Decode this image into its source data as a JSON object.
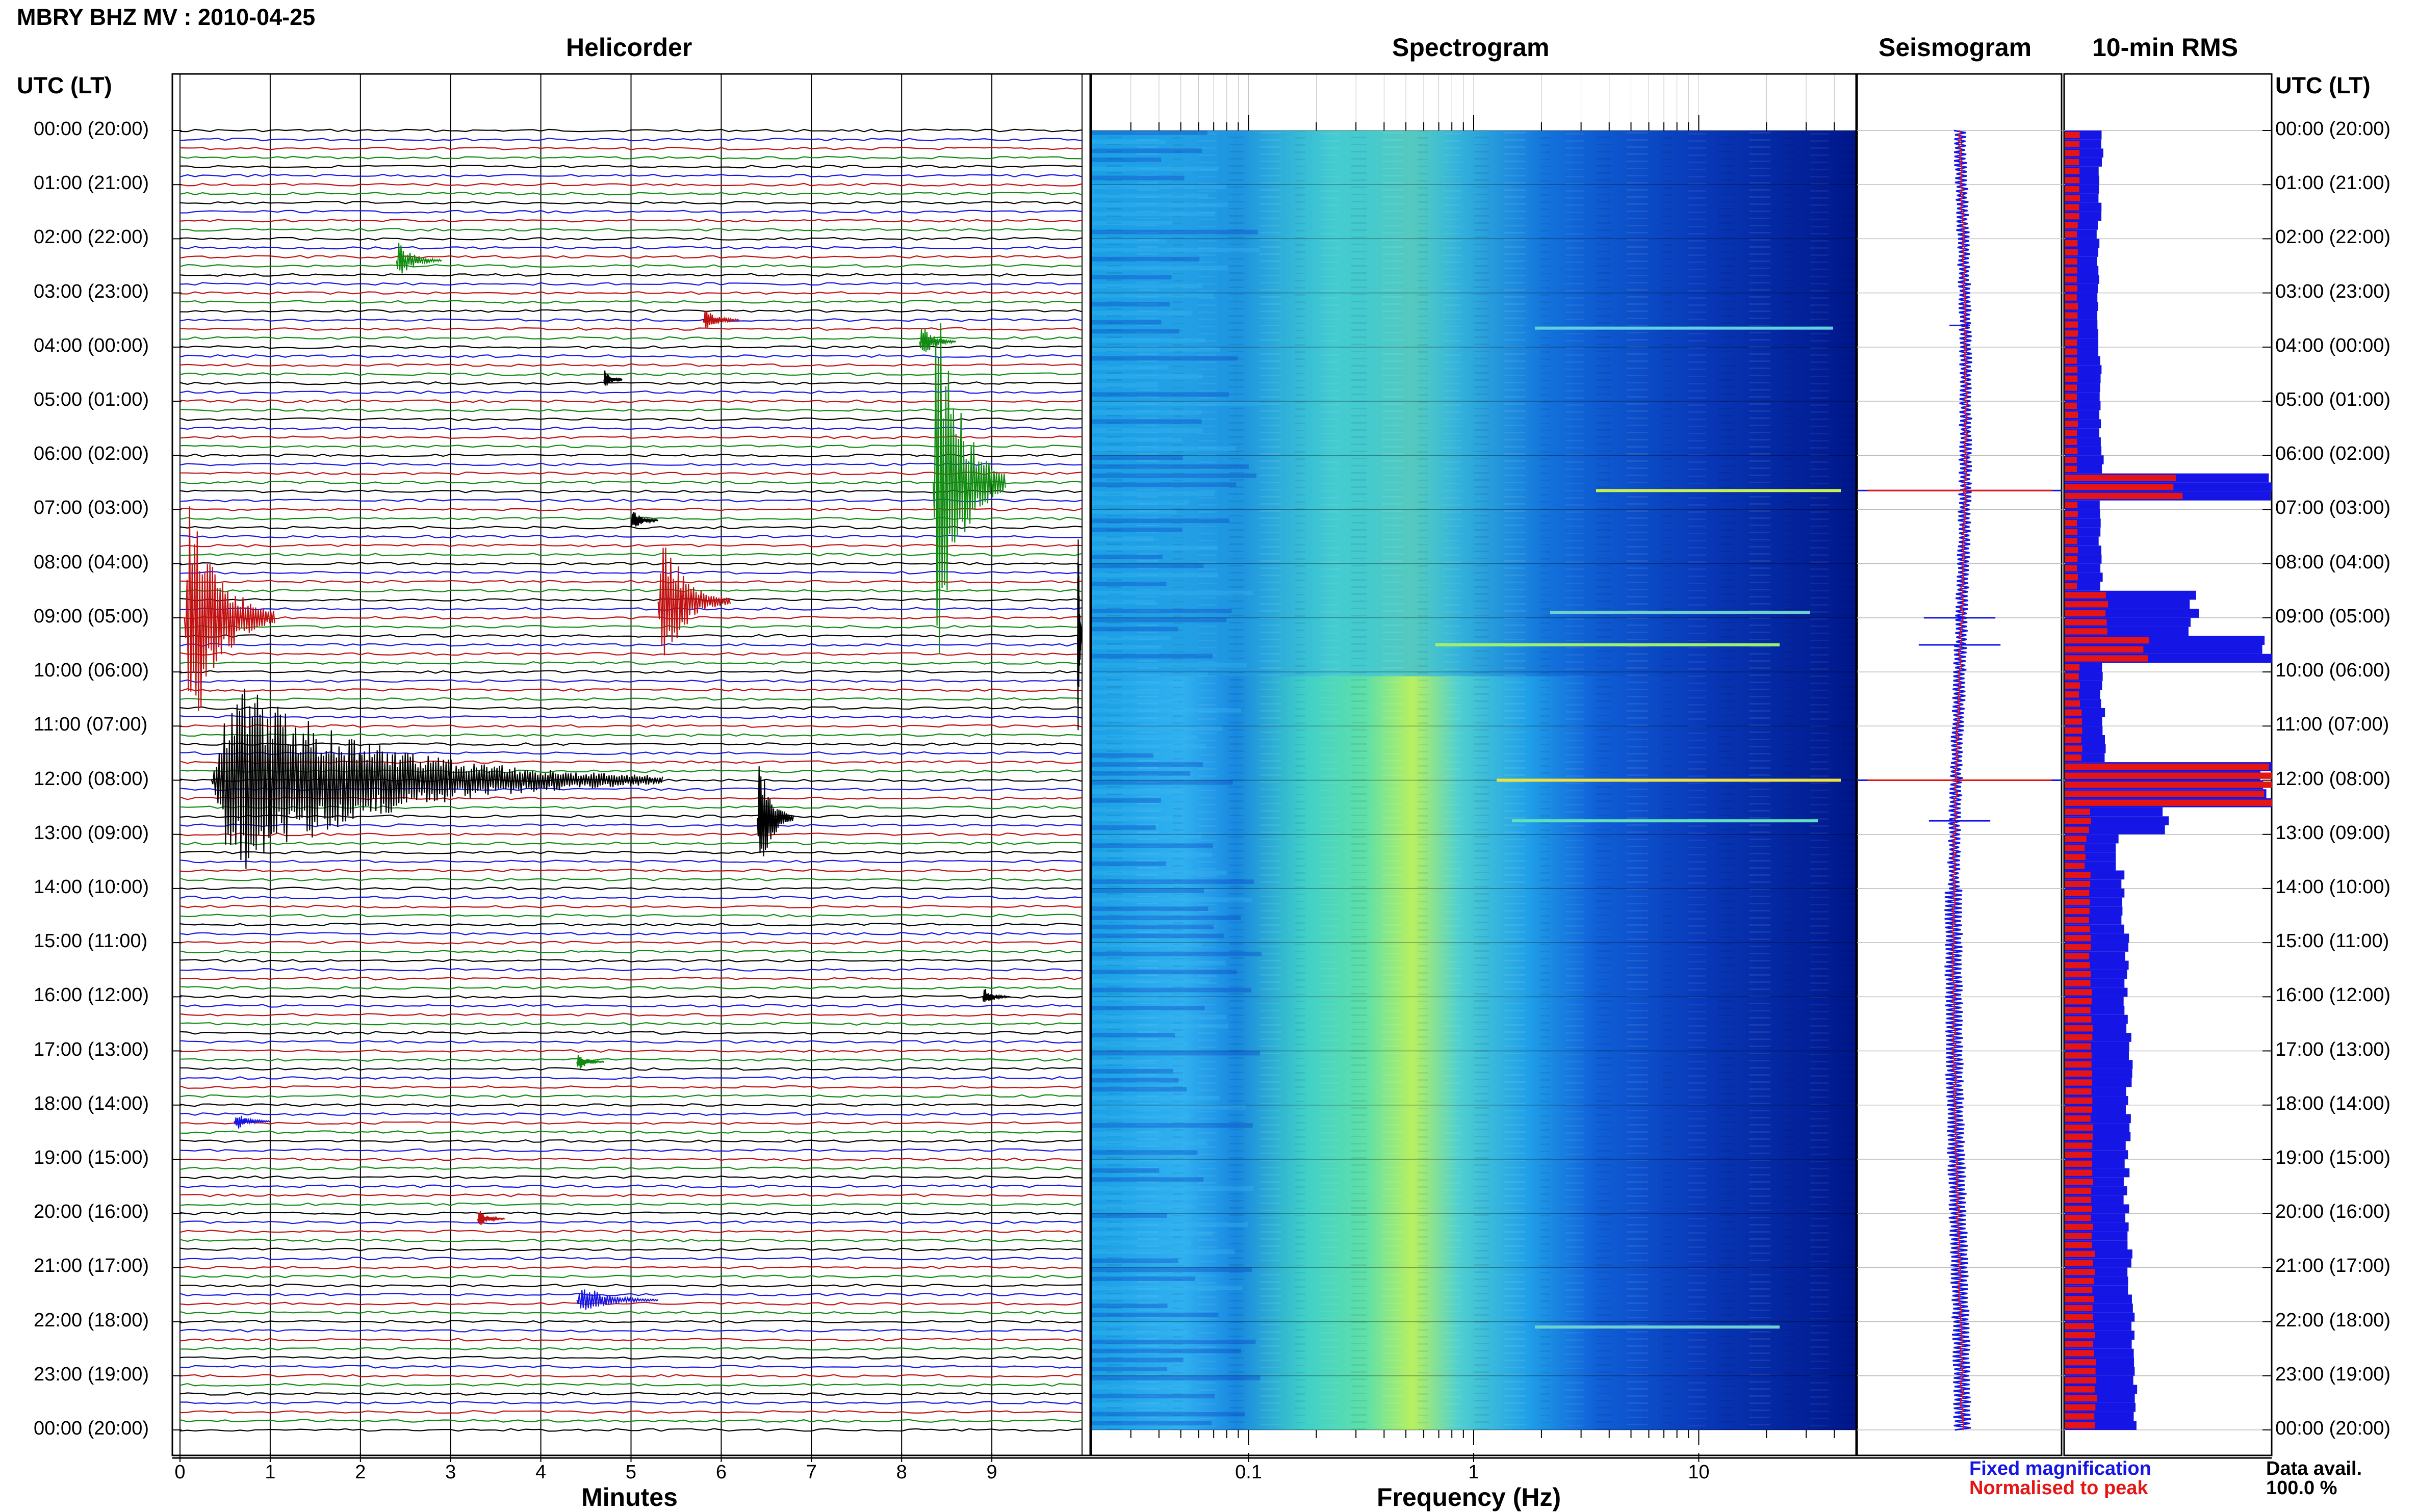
{
  "header": {
    "title": "MBRY BHZ MV : 2010-04-25",
    "utc_label_left": "UTC (LT)",
    "utc_label_right": "UTC (LT)"
  },
  "panels": {
    "helicorder": "Helicorder",
    "spectrogram": "Spectrogram",
    "seismogram": "Seismogram",
    "rms": "10-min RMS"
  },
  "axes": {
    "minutes_label": "Minutes",
    "frequency_label": "Frequency (Hz)",
    "minute_ticks": [
      "0",
      "1",
      "2",
      "3",
      "4",
      "5",
      "6",
      "7",
      "8",
      "9"
    ],
    "frequency_ticks": [
      "0.1",
      "1",
      "10"
    ]
  },
  "legend": {
    "fixed": "Fixed magnification",
    "normalised": "Normalised to peak",
    "fixed_color": "#1515e6",
    "normalised_color": "#e61515"
  },
  "data_availability": {
    "label": "Data avail.",
    "value": "100.0 %"
  },
  "chart_data": {
    "type": "helicorder",
    "time_labels": [
      "00:00 (20:00)",
      "01:00 (21:00)",
      "02:00 (22:00)",
      "03:00 (23:00)",
      "04:00 (00:00)",
      "05:00 (01:00)",
      "06:00 (02:00)",
      "07:00 (03:00)",
      "08:00 (04:00)",
      "09:00 (05:00)",
      "10:00 (06:00)",
      "11:00 (07:00)",
      "12:00 (08:00)",
      "13:00 (09:00)",
      "14:00 (10:00)",
      "15:00 (11:00)",
      "16:00 (12:00)",
      "17:00 (13:00)",
      "18:00 (14:00)",
      "19:00 (15:00)",
      "20:00 (16:00)",
      "21:00 (17:00)",
      "22:00 (18:00)",
      "23:00 (19:00)",
      "00:00 (20:00)"
    ],
    "trace_colors": [
      "#000000",
      "#1515e6",
      "#c01010",
      "#108a10"
    ],
    "minutes_range": [
      0,
      10
    ],
    "frequency_range_hz": [
      0.02,
      50
    ],
    "frequency_scale": "log",
    "events": [
      {
        "hour": 2.4,
        "minute": 2.4,
        "amp": 0.4,
        "dur": 0.5,
        "color": "#108a10"
      },
      {
        "hour": 3.5,
        "minute": 5.8,
        "amp": 0.25,
        "dur": 0.4,
        "color": "#c01010"
      },
      {
        "hour": 3.9,
        "minute": 8.2,
        "amp": 0.4,
        "dur": 0.4,
        "color": "#108a10"
      },
      {
        "hour": 4.6,
        "minute": 4.7,
        "amp": 0.2,
        "dur": 0.2,
        "color": "#000000"
      },
      {
        "hour": 6.5,
        "minute": 8.35,
        "amp": 4.5,
        "dur": 0.8,
        "color": "#108a10"
      },
      {
        "hour": 7.2,
        "minute": 5.0,
        "amp": 0.25,
        "dur": 0.3,
        "color": "#000000"
      },
      {
        "hour": 8.7,
        "minute": 5.3,
        "amp": 1.6,
        "dur": 0.8,
        "color": "#c01010"
      },
      {
        "hour": 9.0,
        "minute": 0.05,
        "amp": 3.0,
        "dur": 1.0,
        "color": "#c01010"
      },
      {
        "hour": 9.3,
        "minute": 9.95,
        "amp": 3.0,
        "dur": 0.2,
        "color": "#000000"
      },
      {
        "hour": 12.0,
        "minute": 0.35,
        "amp": 2.2,
        "dur": 5.0,
        "color": "#000000"
      },
      {
        "hour": 12.7,
        "minute": 6.4,
        "amp": 1.4,
        "dur": 0.4,
        "color": "#000000"
      },
      {
        "hour": 16.0,
        "minute": 8.9,
        "amp": 0.2,
        "dur": 0.3,
        "color": "#000000"
      },
      {
        "hour": 17.2,
        "minute": 4.4,
        "amp": 0.2,
        "dur": 0.3,
        "color": "#108a10"
      },
      {
        "hour": 18.3,
        "minute": 0.6,
        "amp": 0.2,
        "dur": 0.4,
        "color": "#1515e6"
      },
      {
        "hour": 20.1,
        "minute": 3.3,
        "amp": 0.2,
        "dur": 0.3,
        "color": "#c01010"
      },
      {
        "hour": 21.6,
        "minute": 4.4,
        "amp": 0.35,
        "dur": 0.9,
        "color": "#1515e6"
      }
    ],
    "rms_levels": [
      {
        "hour": 0,
        "fixed": 0.18,
        "norm": 0.07
      },
      {
        "hour": 1,
        "fixed": 0.17,
        "norm": 0.07
      },
      {
        "hour": 2,
        "fixed": 0.16,
        "norm": 0.06
      },
      {
        "hour": 3,
        "fixed": 0.16,
        "norm": 0.06
      },
      {
        "hour": 4,
        "fixed": 0.17,
        "norm": 0.06
      },
      {
        "hour": 5,
        "fixed": 0.17,
        "norm": 0.06
      },
      {
        "hour": 6,
        "fixed": 0.18,
        "norm": 0.06
      },
      {
        "hour": 6.6,
        "fixed": 1.0,
        "norm": 0.55
      },
      {
        "hour": 7,
        "fixed": 0.17,
        "norm": 0.06
      },
      {
        "hour": 8,
        "fixed": 0.18,
        "norm": 0.06
      },
      {
        "hour": 8.9,
        "fixed": 0.63,
        "norm": 0.2
      },
      {
        "hour": 9.5,
        "fixed": 1.0,
        "norm": 0.4
      },
      {
        "hour": 10,
        "fixed": 0.18,
        "norm": 0.07
      },
      {
        "hour": 11,
        "fixed": 0.19,
        "norm": 0.08
      },
      {
        "hour": 12,
        "fixed": 1.0,
        "norm": 1.0
      },
      {
        "hour": 12.7,
        "fixed": 0.5,
        "norm": 0.12
      },
      {
        "hour": 13,
        "fixed": 0.26,
        "norm": 0.1
      },
      {
        "hour": 14,
        "fixed": 0.28,
        "norm": 0.12
      },
      {
        "hour": 15,
        "fixed": 0.3,
        "norm": 0.12
      },
      {
        "hour": 16,
        "fixed": 0.3,
        "norm": 0.13
      },
      {
        "hour": 17,
        "fixed": 0.32,
        "norm": 0.13
      },
      {
        "hour": 18,
        "fixed": 0.31,
        "norm": 0.13
      },
      {
        "hour": 19,
        "fixed": 0.3,
        "norm": 0.13
      },
      {
        "hour": 20,
        "fixed": 0.3,
        "norm": 0.13
      },
      {
        "hour": 21,
        "fixed": 0.32,
        "norm": 0.14
      },
      {
        "hour": 22,
        "fixed": 0.34,
        "norm": 0.14
      },
      {
        "hour": 23,
        "fixed": 0.35,
        "norm": 0.15
      },
      {
        "hour": 24,
        "fixed": 0.35,
        "norm": 0.15
      }
    ]
  }
}
